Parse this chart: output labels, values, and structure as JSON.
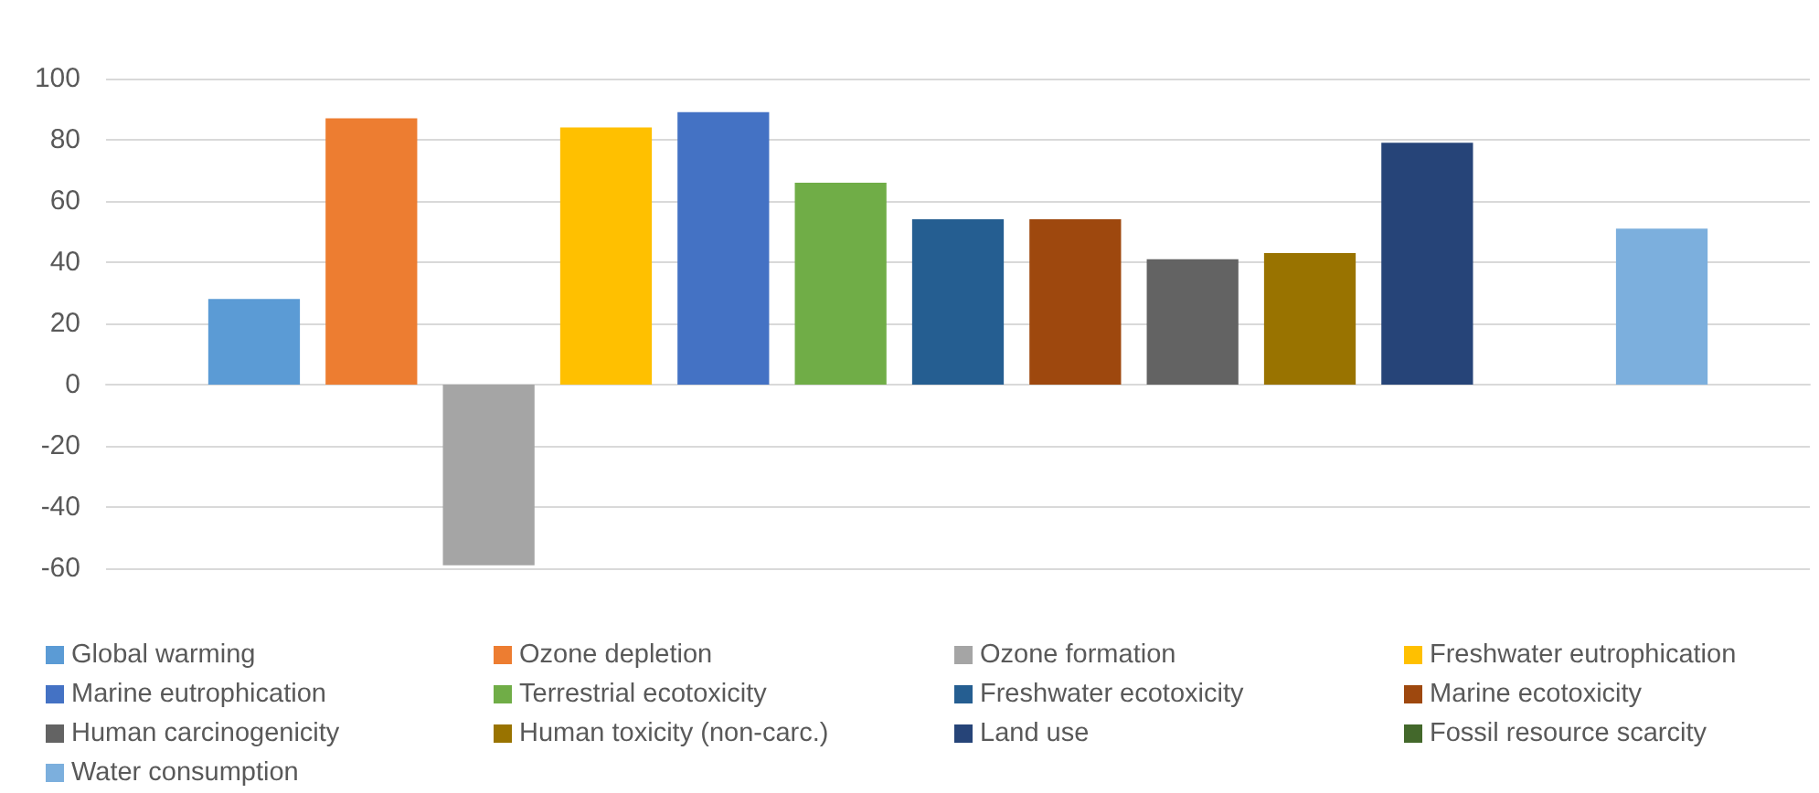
{
  "chart_data": {
    "type": "bar",
    "categories": [
      null
    ],
    "series": [
      {
        "name": "Global warming",
        "color": "#5b9bd5",
        "values": [
          28
        ]
      },
      {
        "name": "Ozone depletion",
        "color": "#ed7d31",
        "values": [
          87
        ]
      },
      {
        "name": "Ozone formation",
        "color": "#a5a5a5",
        "values": [
          -59
        ]
      },
      {
        "name": "Freshwater eutrophication",
        "color": "#ffc000",
        "values": [
          84
        ]
      },
      {
        "name": "Marine eutrophication",
        "color": "#4472c4",
        "values": [
          89
        ]
      },
      {
        "name": "Terrestrial ecotoxicity",
        "color": "#70ad47",
        "values": [
          66
        ]
      },
      {
        "name": "Freshwater ecotoxicity",
        "color": "#255e91",
        "values": [
          54
        ]
      },
      {
        "name": "Marine ecotoxicity",
        "color": "#9e480e",
        "values": [
          54
        ]
      },
      {
        "name": "Human carcinogenicity",
        "color": "#636363",
        "values": [
          41
        ]
      },
      {
        "name": "Human toxicity (non-carc.)",
        "color": "#997300",
        "values": [
          43
        ]
      },
      {
        "name": "Land use",
        "color": "#264478",
        "values": [
          79
        ]
      },
      {
        "name": "Fossil resource scarcity",
        "color": "#43682b",
        "values": [
          0
        ]
      },
      {
        "name": "Water consumption",
        "color": "#7cafdd",
        "values": [
          51
        ]
      }
    ],
    "ylim": [
      -60,
      100
    ],
    "yticks": [
      -60,
      -40,
      -20,
      0,
      20,
      40,
      60,
      80,
      100
    ],
    "grid": "y",
    "legend": "bottom"
  }
}
